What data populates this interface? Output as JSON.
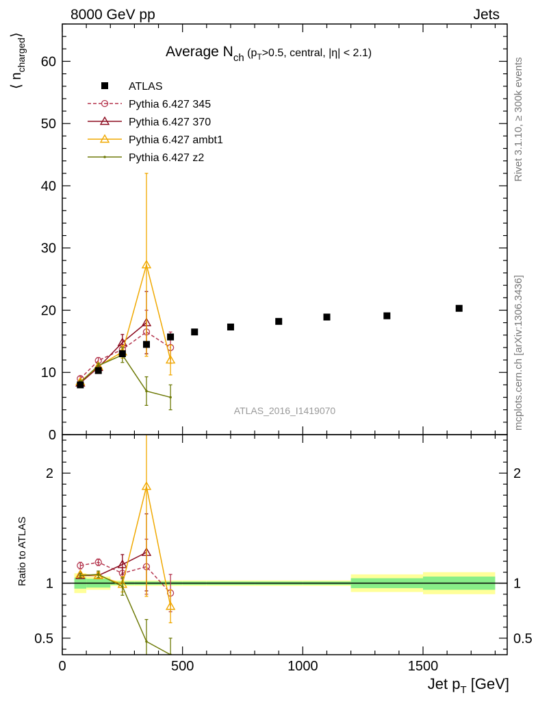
{
  "header": {
    "left": "8000 GeV pp",
    "right": "Jets"
  },
  "side_labels": {
    "rivet": "Rivet 3.1.10, ≥ 300k events",
    "mcplots": "mcplots.cern.ch [arXiv:1306.3436]"
  },
  "watermark": "ATLAS_2016_I1419070",
  "title": {
    "main": "Average N",
    "sub": "ch",
    "detail_open": " (p",
    "detail_sub": "T",
    "detail_rest": ">0.5, central, |η| < 2.1)"
  },
  "axes": {
    "ylabel_main": "⟨ n",
    "ylabel_sub": "charged",
    "ylabel_close": "⟩",
    "ylabel_ratio": "Ratio to ATLAS",
    "xlabel_main": "Jet p",
    "xlabel_sub": "T",
    "xlabel_unit": " [GeV]"
  },
  "chart_data": {
    "type": "line",
    "xlim": [
      0,
      1850
    ],
    "main_ylim": [
      0,
      66
    ],
    "ratio_ylim": [
      0.35,
      2.35
    ],
    "x_ticks": [
      0,
      500,
      1000,
      1500
    ],
    "x_tick_labels": [
      "0",
      "500",
      "1000",
      "1500"
    ],
    "main_y_ticks": [
      0,
      10,
      20,
      30,
      40,
      50,
      60
    ],
    "main_y_tick_labels": [
      "0",
      "10",
      "20",
      "30",
      "40",
      "50",
      "60"
    ],
    "ratio_y_ticks": [
      0.5,
      1,
      2
    ],
    "ratio_y_tick_labels": [
      "0.5",
      "1",
      "2"
    ],
    "legend_position": "top-left",
    "reference": {
      "name": "ATLAS",
      "color": "#000000",
      "x": [
        75,
        150,
        250,
        350,
        450,
        550,
        700,
        900,
        1100,
        1350,
        1650
      ],
      "y": [
        8.0,
        10.3,
        13.0,
        14.5,
        15.7,
        16.5,
        17.3,
        18.2,
        18.9,
        19.1,
        20.3
      ],
      "bins": [
        [
          50,
          100
        ],
        [
          100,
          200
        ],
        [
          200,
          300
        ],
        [
          300,
          400
        ],
        [
          400,
          500
        ],
        [
          500,
          600
        ],
        [
          600,
          800
        ],
        [
          800,
          1000
        ],
        [
          1000,
          1200
        ],
        [
          1200,
          1500
        ],
        [
          1500,
          1800
        ]
      ],
      "band_inner": [
        0.05,
        0.04,
        0.015,
        0.015,
        0.015,
        0.015,
        0.015,
        0.015,
        0.015,
        0.045,
        0.06
      ],
      "band_outer": [
        0.09,
        0.06,
        0.025,
        0.025,
        0.025,
        0.025,
        0.025,
        0.025,
        0.025,
        0.08,
        0.1
      ]
    },
    "series": [
      {
        "name": "Pythia 6.427 345",
        "color": "#b5374f",
        "dash": true,
        "marker": "circle",
        "x": [
          75,
          150,
          250,
          350,
          450
        ],
        "y": [
          9.0,
          11.9,
          13.7,
          16.5,
          14.0
        ],
        "err": [
          0.4,
          0.5,
          0.8,
          3.5,
          2.5
        ],
        "ratio": [
          1.16,
          1.19,
          1.09,
          1.15,
          0.91
        ],
        "ratio_err": [
          0.03,
          0.03,
          0.05,
          0.25,
          0.17
        ]
      },
      {
        "name": "Pythia 6.427 370",
        "color": "#8b0a1e",
        "dash": false,
        "marker": "triangle",
        "x": [
          75,
          150,
          250,
          350,
          450
        ],
        "y": [
          8.3,
          10.8,
          14.8,
          18.0,
          null
        ],
        "err": [
          0.3,
          0.4,
          1.3,
          5.0,
          null
        ],
        "ratio": [
          1.07,
          1.07,
          1.17,
          1.28,
          null
        ],
        "ratio_err": [
          0.02,
          0.03,
          0.09,
          0.35,
          null
        ]
      },
      {
        "name": "Pythia 6.427 ambt1",
        "color": "#f0a800",
        "dash": false,
        "marker": "triangle",
        "x": [
          75,
          150,
          250,
          350,
          450
        ],
        "y": [
          8.5,
          11.0,
          13.3,
          27.3,
          12.0
        ],
        "err": [
          0.3,
          0.4,
          1.0,
          14.7,
          2.4
        ],
        "ratio": [
          1.08,
          1.07,
          0.99,
          1.88,
          0.79
        ],
        "ratio_err": [
          0.02,
          0.03,
          0.07,
          1.0,
          0.15
        ]
      },
      {
        "name": "Pythia 6.427 z2",
        "color": "#6e7a08",
        "dash": false,
        "marker": "dot",
        "x": [
          75,
          150,
          250,
          350,
          450
        ],
        "y": [
          8.4,
          11.1,
          12.8,
          7.0,
          6.0
        ],
        "err": [
          0.3,
          0.4,
          1.2,
          2.3,
          2.0
        ],
        "ratio": [
          1.07,
          1.08,
          0.97,
          0.47,
          0.35
        ],
        "ratio_err": [
          0.02,
          0.03,
          0.08,
          0.2,
          0.15
        ]
      }
    ]
  }
}
